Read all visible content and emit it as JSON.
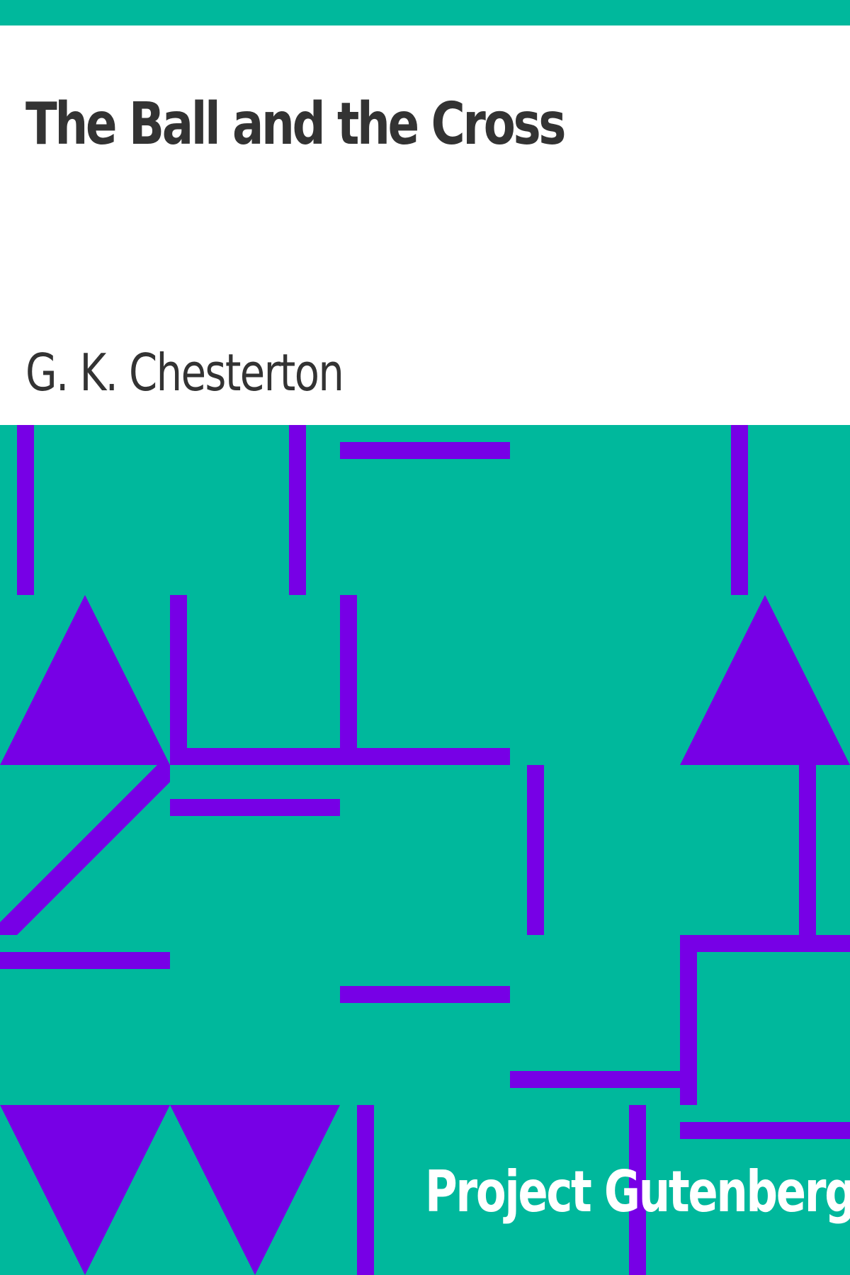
{
  "cover": {
    "title": "The Ball and the Cross",
    "author": "G. K. Chesterton",
    "publisher": "Project Gutenberg"
  },
  "colors": {
    "background": "#00B89C",
    "panel": "#FFFFFF",
    "text": "#333333",
    "pattern": "#7700E6",
    "publisher_text": "#FFFFFF"
  }
}
